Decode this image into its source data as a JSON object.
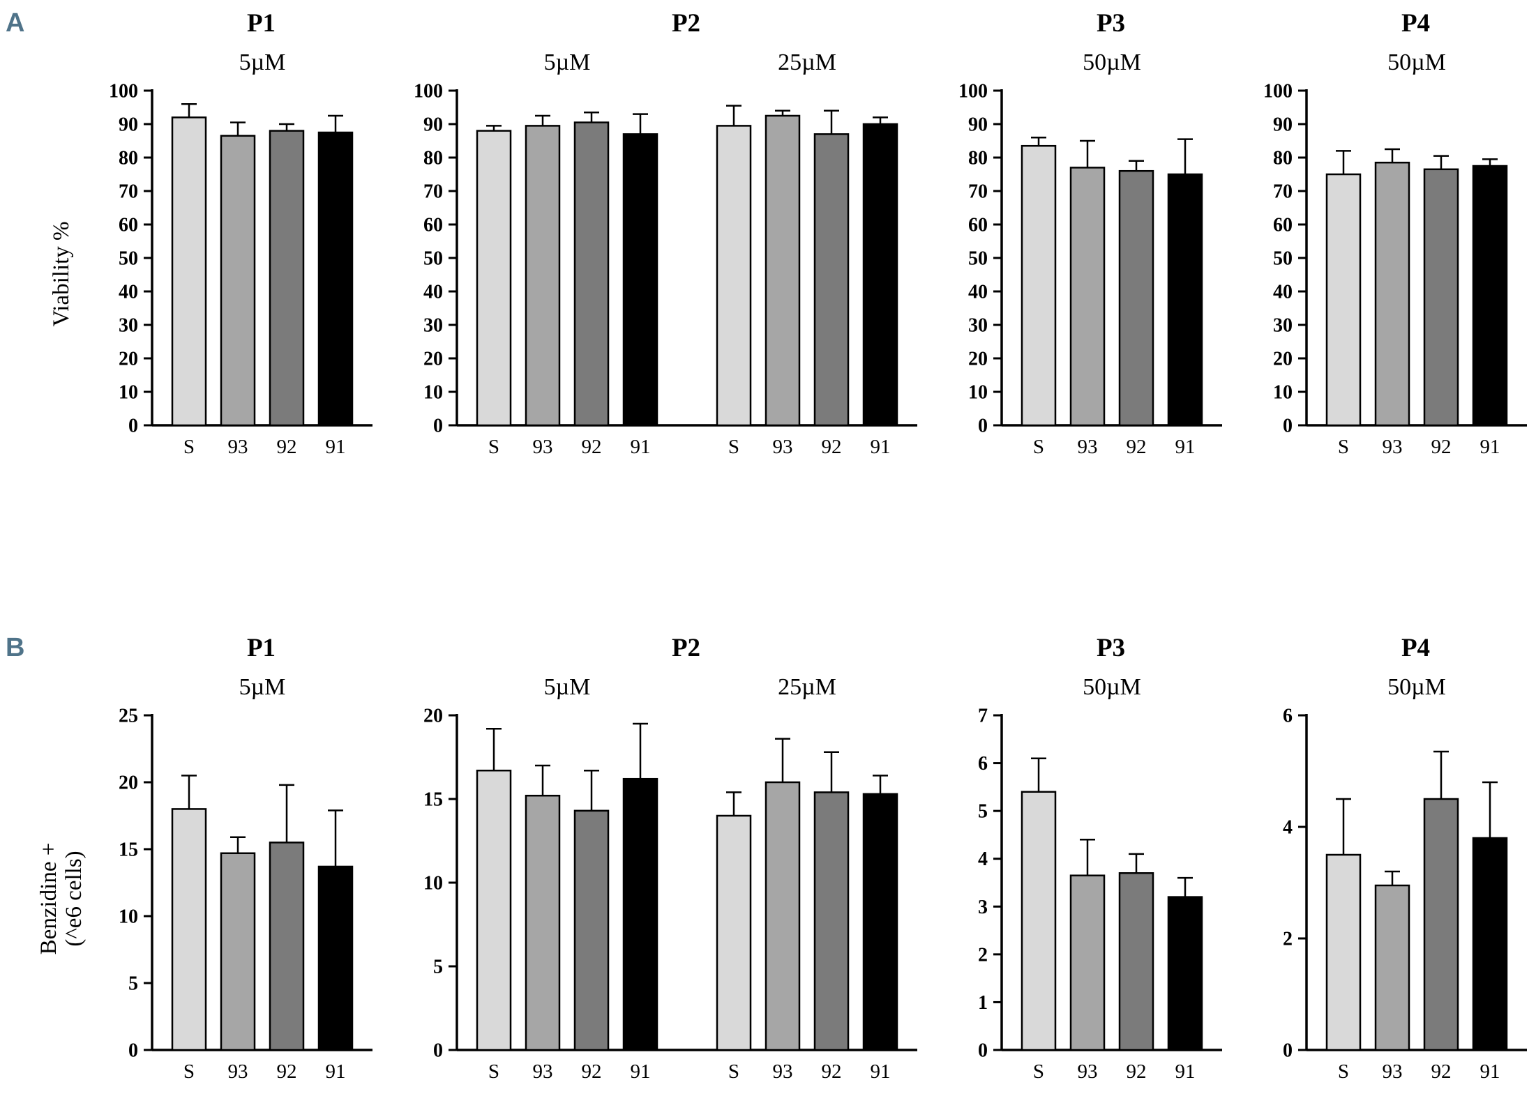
{
  "shared": {
    "categories": [
      "S",
      "93",
      "92",
      "91"
    ],
    "bar_colors": [
      "#d9d9d9",
      "#a6a6a6",
      "#7b7b7b",
      "#000000"
    ],
    "axis_color": "#000000",
    "panel_letter_color": "#4f7389"
  },
  "panels": {
    "a": {
      "letter": "A",
      "ylabel_line1": "Viability  %",
      "ylabel_line2": ""
    },
    "b": {
      "letter": "B",
      "ylabel_line1": "Benzidine +",
      "ylabel_line2": "(^e6 cells)"
    }
  },
  "chart_data": [
    {
      "type": "bar",
      "row": "A",
      "title": "P1",
      "ylabel": "Viability %",
      "ylim": [
        0,
        100
      ],
      "ytick": 10,
      "groups": [
        {
          "subtitle": "5µM",
          "categories": [
            "S",
            "93",
            "92",
            "91"
          ],
          "values": [
            92,
            86.5,
            88,
            87.5
          ],
          "errors": [
            4,
            4,
            2,
            5
          ]
        }
      ]
    },
    {
      "type": "bar",
      "row": "A",
      "title": "P2",
      "ylabel": "Viability %",
      "ylim": [
        0,
        100
      ],
      "ytick": 10,
      "groups": [
        {
          "subtitle": "5µM",
          "categories": [
            "S",
            "93",
            "92",
            "91"
          ],
          "values": [
            88,
            89.5,
            90.5,
            87
          ],
          "errors": [
            1.5,
            3,
            3,
            6
          ]
        },
        {
          "subtitle": "25µM",
          "categories": [
            "S",
            "93",
            "92",
            "91"
          ],
          "values": [
            89.5,
            92.5,
            87,
            90
          ],
          "errors": [
            6,
            1.5,
            7,
            2
          ]
        }
      ]
    },
    {
      "type": "bar",
      "row": "A",
      "title": "P3",
      "ylabel": "Viability %",
      "ylim": [
        0,
        100
      ],
      "ytick": 10,
      "groups": [
        {
          "subtitle": "50µM",
          "categories": [
            "S",
            "93",
            "92",
            "91"
          ],
          "values": [
            83.5,
            77,
            76,
            75
          ],
          "errors": [
            2.5,
            8,
            3,
            10.5
          ]
        }
      ]
    },
    {
      "type": "bar",
      "row": "A",
      "title": "P4",
      "ylabel": "Viability %",
      "ylim": [
        0,
        100
      ],
      "ytick": 10,
      "groups": [
        {
          "subtitle": "50µM",
          "categories": [
            "S",
            "93",
            "92",
            "91"
          ],
          "values": [
            75,
            78.5,
            76.5,
            77.5
          ],
          "errors": [
            7,
            4,
            4,
            2
          ]
        }
      ]
    },
    {
      "type": "bar",
      "row": "B",
      "title": "P1",
      "ylabel": "Benzidine + (^e6 cells)",
      "ylim": [
        0,
        25
      ],
      "ytick": 5,
      "groups": [
        {
          "subtitle": "5µM",
          "categories": [
            "S",
            "93",
            "92",
            "91"
          ],
          "values": [
            18,
            14.7,
            15.5,
            13.7
          ],
          "errors": [
            2.5,
            1.2,
            4.3,
            4.2
          ]
        }
      ]
    },
    {
      "type": "bar",
      "row": "B",
      "title": "P2",
      "ylabel": "Benzidine + (^e6 cells)",
      "ylim": [
        0,
        20
      ],
      "ytick": 5,
      "groups": [
        {
          "subtitle": "5µM",
          "categories": [
            "S",
            "93",
            "92",
            "91"
          ],
          "values": [
            16.7,
            15.2,
            14.3,
            16.2
          ],
          "errors": [
            2.5,
            1.8,
            2.4,
            3.3
          ]
        },
        {
          "subtitle": "25µM",
          "categories": [
            "S",
            "93",
            "92",
            "91"
          ],
          "values": [
            14,
            16,
            15.4,
            15.3
          ],
          "errors": [
            1.4,
            2.6,
            2.4,
            1.1
          ]
        }
      ]
    },
    {
      "type": "bar",
      "row": "B",
      "title": "P3",
      "ylabel": "Benzidine + (^e6 cells)",
      "ylim": [
        0,
        7
      ],
      "ytick": 1,
      "groups": [
        {
          "subtitle": "50µM",
          "categories": [
            "S",
            "93",
            "92",
            "91"
          ],
          "values": [
            5.4,
            3.65,
            3.7,
            3.2
          ],
          "errors": [
            0.7,
            0.75,
            0.4,
            0.4
          ]
        }
      ]
    },
    {
      "type": "bar",
      "row": "B",
      "title": "P4",
      "ylabel": "Benzidine + (^e6 cells)",
      "ylim": [
        0,
        6
      ],
      "ytick": 2,
      "groups": [
        {
          "subtitle": "50µM",
          "categories": [
            "S",
            "93",
            "92",
            "91"
          ],
          "values": [
            3.5,
            2.95,
            4.5,
            3.8
          ],
          "errors": [
            1.0,
            0.25,
            0.85,
            1.0
          ]
        }
      ]
    }
  ]
}
